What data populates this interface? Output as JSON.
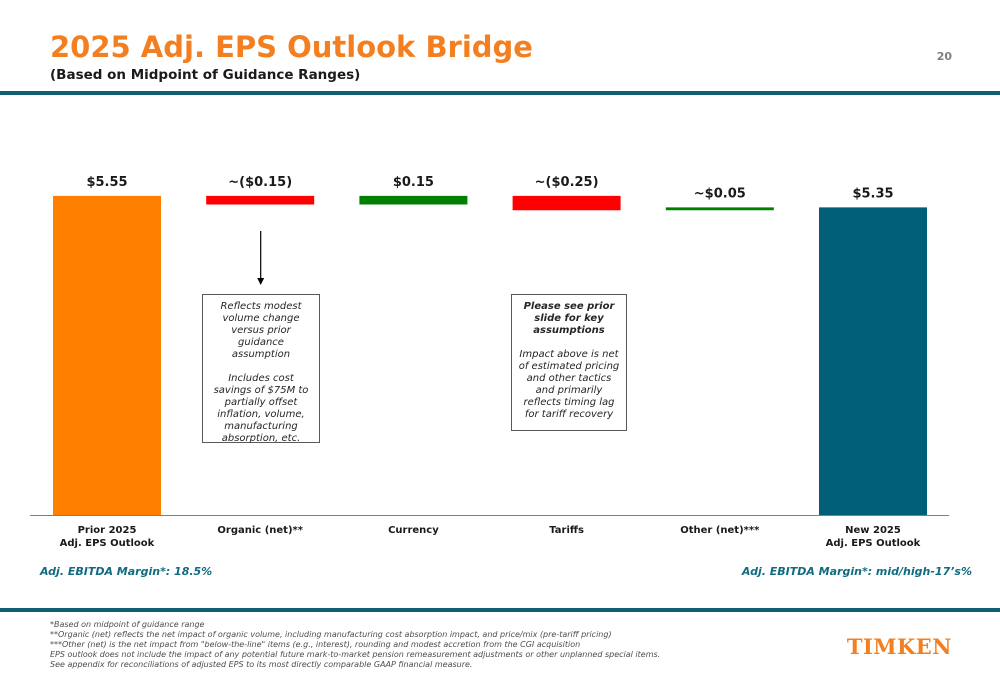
{
  "header": {
    "title": "2025 Adj. EPS Outlook Bridge",
    "subtitle": "(Based on Midpoint of Guidance Ranges)",
    "page_number": "20"
  },
  "chart_data": {
    "type": "bar",
    "subtype": "waterfall",
    "categories": [
      "Prior 2025\nAdj. EPS Outlook",
      "Organic (net)**",
      "Currency",
      "Tariffs",
      "Other (net)***",
      "New 2025\nAdj. EPS Outlook"
    ],
    "values": [
      5.55,
      -0.15,
      0.15,
      -0.25,
      0.05,
      5.35
    ],
    "bar_kinds": [
      "total",
      "delta",
      "delta",
      "delta",
      "delta",
      "total"
    ],
    "data_labels": [
      "$5.55",
      "~($0.15)",
      "$0.15",
      "~($0.25)",
      "~$0.05",
      "$5.35"
    ],
    "colors": {
      "prior_total": "#ff8000",
      "new_total": "#005e78",
      "increase": "#008000",
      "decrease": "#ff0000"
    },
    "grid": false,
    "legend": "none"
  },
  "annotations": {
    "organic": {
      "line1": "Reflects modest volume change versus prior guidance assumption",
      "line2": "Includes cost savings of $75M to partially offset inflation, volume, manufacturing absorption, etc."
    },
    "tariffs": {
      "heading": "Please see prior slide for key assumptions",
      "body": "Impact above is net of estimated pricing and other tactics and primarily reflects timing lag for tariff recovery"
    }
  },
  "margins": {
    "left": "Adj. EBITDA Margin*: 18.5%",
    "right": "Adj. EBITDA Margin*: mid/high-17’s%"
  },
  "footnotes": [
    "*Based on midpoint of guidance range",
    "**Organic (net) reflects the net impact of organic volume, including manufacturing cost absorption impact, and price/mix (pre-tariff pricing)",
    "***Other (net) is the net impact from \"below-the-line\" items (e.g., interest), rounding and modest accretion from the CGI acquisition",
    "EPS outlook does not include the impact of any potential future mark-to-market pension remeasurement adjustments or other unplanned special items.",
    "See appendix for reconciliations of adjusted EPS to its most directly comparable GAAP financial measure."
  ],
  "brand": {
    "logo_text": "TIMKEN",
    "accent": "#f47f20",
    "rule_color": "#0f5f73"
  }
}
